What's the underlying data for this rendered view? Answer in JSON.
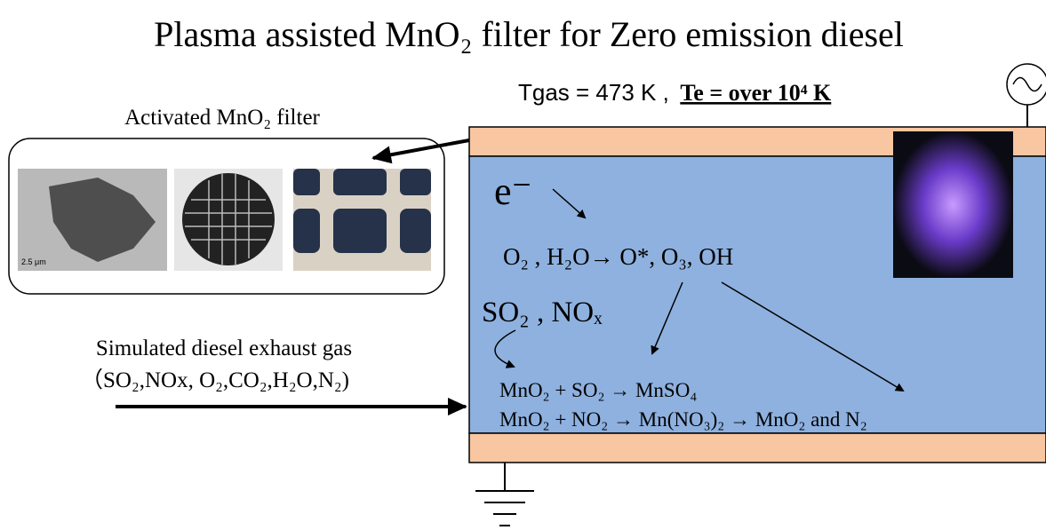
{
  "title": "Plasma assisted MnO₂ filter for Zero emission diesel",
  "conditions": {
    "gas": "Tgas = 473 K ,",
    "electron": "Te = over 10⁴ K"
  },
  "filter": {
    "label": "Activated MnO₂ filter",
    "scale_bar": "2.5 μm"
  },
  "plasma": {
    "electron": "e⁻",
    "radicals": "O₂ , H₂O→ O*, O₃, OH",
    "pollutants": "SO₂ , NOₓ",
    "reaction_1": "MnO₂ + SO₂ → MnSO₄",
    "reaction_2": "MnO₂ + NO₂ → Mn(NO₃)₂ →  MnO₂ and N₂"
  },
  "exhaust": {
    "label": "Simulated diesel exhaust gas",
    "composition": "（SO₂,NOx, O₂,CO₂,H₂O,N₂)"
  }
}
